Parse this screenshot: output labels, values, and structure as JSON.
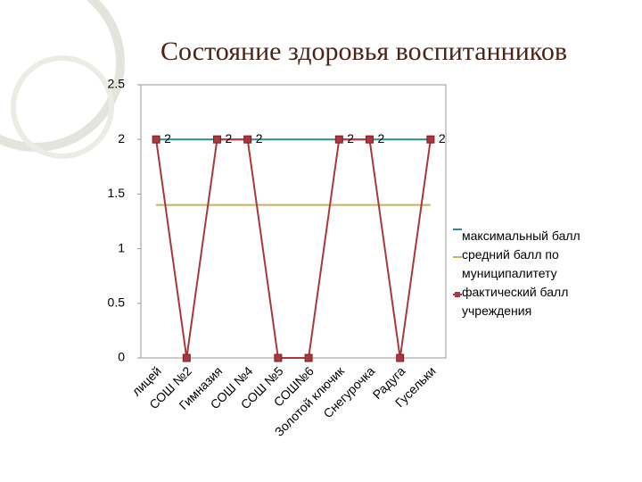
{
  "chart_data": {
    "type": "line",
    "title": "Состояние здоровья воспитанников",
    "categories": [
      "лицей",
      "СОШ №2",
      "Гимназия",
      "СОШ №4",
      "СОШ №5",
      "СОШ№6",
      "Золотой ключик",
      "Снегурочка",
      "Радуга",
      "Гусельки"
    ],
    "series": [
      {
        "name": "максимальный балл",
        "color": "#2a8a96",
        "values": [
          2,
          2,
          2,
          2,
          2,
          2,
          2,
          2,
          2,
          2
        ]
      },
      {
        "name": "средний балл по муниципалитету",
        "color": "#c8b258",
        "values": [
          1.4,
          1.4,
          1.4,
          1.4,
          1.4,
          1.4,
          1.4,
          1.4,
          1.4,
          1.4
        ]
      },
      {
        "name": "фактический балл учреждения",
        "color": "#a8383c",
        "marker": "square",
        "values": [
          2,
          0,
          2,
          2,
          0,
          0,
          2,
          2,
          0,
          2
        ],
        "value_labels": [
          "2",
          null,
          "2",
          "2",
          null,
          null,
          "2",
          "2",
          null,
          "2"
        ]
      }
    ],
    "ylim": [
      0,
      2.5
    ],
    "yticks": [
      0,
      0.5,
      1,
      1.5,
      2,
      2.5
    ],
    "grid": false,
    "legend": "right"
  }
}
